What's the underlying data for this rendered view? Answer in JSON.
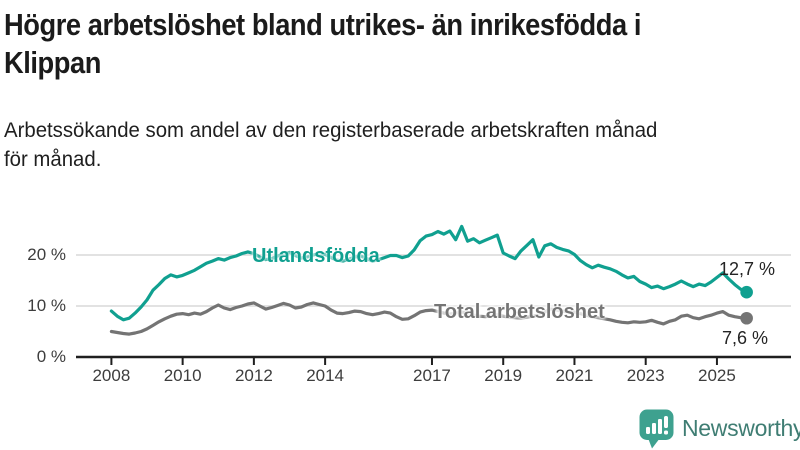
{
  "header": {
    "title_line1": "Högre arbetslöshet bland utrikes- än inrikesfödda i",
    "title_line2": "Klippan",
    "subtitle_line1": "Arbetssökande som andel av den registerbaserade arbetskraften månad",
    "subtitle_line2": "för månad."
  },
  "chart_data": {
    "type": "line",
    "title": "Högre arbetslöshet bland utrikes- än inrikesfödda i Klippan",
    "subtitle": "Arbetssökande som andel av den registerbaserade arbetskraften månad för månad.",
    "x_unit": "year, monthly observations",
    "x_start": 2008.0,
    "x_step": 0.16667,
    "ylim": [
      0,
      26
    ],
    "grid_y_pct": [
      10,
      20
    ],
    "y_tick_pcts": [
      0,
      10,
      20
    ],
    "y_ticks": [
      "0 %",
      "10 %",
      "20 %"
    ],
    "x_tick_years": [
      2008,
      2010,
      2012,
      2014,
      2017,
      2019,
      2021,
      2023,
      2025
    ],
    "x_ticks": [
      "2008",
      "2010",
      "2012",
      "2014",
      "2017",
      "2019",
      "2021",
      "2023",
      "2025"
    ],
    "legend_position": "inline-labels-on-lines",
    "series": [
      {
        "name": "Utlandsfödda",
        "color": "#10A090",
        "end_label": "12,7 %",
        "end_value": 12.7,
        "values": [
          9.0,
          8.0,
          7.3,
          7.6,
          8.6,
          9.8,
          11.2,
          13.1,
          14.2,
          15.4,
          16.1,
          15.7,
          16.0,
          16.5,
          17.0,
          17.7,
          18.4,
          18.8,
          19.3,
          19.0,
          19.5,
          19.8,
          20.3,
          20.6,
          20.3,
          19.6,
          19.1,
          19.3,
          19.8,
          20.2,
          20.5,
          19.9,
          19.4,
          19.6,
          20.0,
          20.3,
          20.1,
          19.5,
          19.0,
          18.8,
          19.2,
          19.6,
          19.8,
          19.3,
          18.8,
          19.1,
          19.5,
          19.9,
          19.9,
          19.5,
          19.8,
          21.0,
          22.8,
          23.7,
          24.0,
          24.6,
          24.1,
          24.7,
          23.0,
          25.6,
          22.7,
          23.2,
          22.4,
          22.9,
          23.4,
          23.9,
          20.4,
          19.8,
          19.3,
          20.8,
          21.9,
          23.0,
          19.6,
          21.8,
          22.2,
          21.5,
          21.1,
          20.8,
          20.1,
          18.9,
          18.1,
          17.5,
          18.0,
          17.6,
          17.3,
          16.8,
          16.1,
          15.5,
          15.8,
          14.8,
          14.3,
          13.6,
          13.9,
          13.4,
          13.8,
          14.3,
          14.9,
          14.3,
          13.8,
          14.3,
          14.0,
          14.7,
          15.6,
          16.5,
          15.3,
          14.2,
          13.3,
          12.7
        ]
      },
      {
        "name": "Total arbetslöshet",
        "color": "#747474",
        "end_label": "7,6 %",
        "end_value": 7.6,
        "values": [
          5.0,
          4.8,
          4.6,
          4.5,
          4.7,
          5.0,
          5.5,
          6.2,
          6.9,
          7.5,
          8.0,
          8.4,
          8.5,
          8.3,
          8.6,
          8.4,
          8.9,
          9.6,
          10.2,
          9.6,
          9.3,
          9.7,
          10.0,
          10.4,
          10.6,
          10.0,
          9.4,
          9.7,
          10.1,
          10.5,
          10.2,
          9.6,
          9.8,
          10.3,
          10.6,
          10.3,
          10.0,
          9.2,
          8.6,
          8.5,
          8.7,
          9.0,
          8.9,
          8.5,
          8.3,
          8.5,
          8.8,
          8.6,
          7.9,
          7.4,
          7.5,
          8.1,
          8.8,
          9.1,
          9.2,
          8.9,
          8.6,
          8.4,
          8.6,
          8.8,
          8.5,
          8.2,
          8.0,
          7.9,
          8.1,
          8.3,
          8.0,
          7.8,
          7.7,
          7.6,
          7.8,
          8.0,
          8.2,
          8.8,
          9.4,
          9.2,
          9.0,
          8.9,
          8.8,
          8.5,
          8.2,
          7.9,
          7.7,
          7.5,
          7.3,
          7.0,
          6.8,
          6.7,
          6.9,
          6.8,
          6.9,
          7.2,
          6.8,
          6.5,
          7.0,
          7.3,
          8.0,
          8.2,
          7.7,
          7.5,
          7.9,
          8.2,
          8.6,
          8.9,
          8.2,
          7.9,
          7.7,
          7.6
        ]
      }
    ]
  },
  "branding": {
    "logo_text": "Newsworthy",
    "logo_icon": "bar-chart-speech-bubble-icon",
    "logo_icon_color": "#3EA18F",
    "logo_text_color": "#3F7D73"
  },
  "colors": {
    "accent_teal": "#10A090",
    "line_gray": "#747474",
    "gridline": "#d9d9d9",
    "axis": "#1f1f1f",
    "text": "#1b1b1b"
  }
}
